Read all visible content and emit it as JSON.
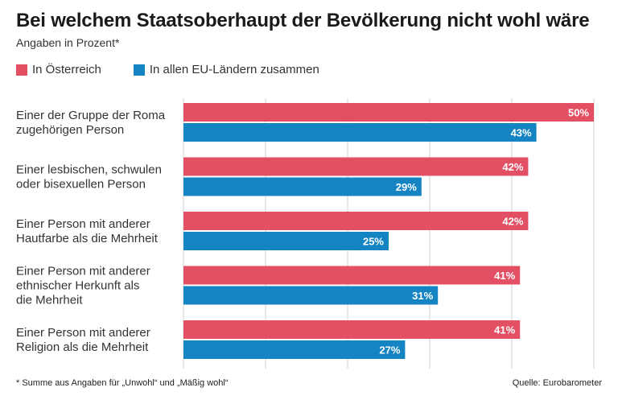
{
  "chart_data": {
    "type": "bar",
    "orientation": "horizontal",
    "title": "Bei welchem Staatsoberhaupt der Bevölkerung nicht wohl wäre",
    "subtitle": "Angaben in Prozent*",
    "categories": [
      [
        "Einer der Gruppe der Roma",
        "zugehörigen Person"
      ],
      [
        "Einer lesbischen, schwulen",
        "oder bisexuellen Person"
      ],
      [
        "Einer Person mit anderer",
        "Hautfarbe als die Mehrheit"
      ],
      [
        "Einer Person mit anderer",
        "ethnischer Herkunft als",
        "die Mehrheit"
      ],
      [
        "Einer Person mit anderer",
        "Religion als die Mehrheit"
      ]
    ],
    "series": [
      {
        "name": "In Österreich",
        "color": "#e35064",
        "values": [
          50,
          42,
          42,
          41,
          41
        ]
      },
      {
        "name": "In allen EU-Ländern zusammen",
        "color": "#1485c2",
        "values": [
          43,
          29,
          25,
          31,
          27
        ]
      }
    ],
    "value_suffix": "%",
    "xlim": [
      0,
      50
    ],
    "grid_step": 10,
    "grid": true
  },
  "footnote": "* Summe aus Angaben für „Unwohl“ und „Mäßig wohl“",
  "source": "Quelle: Eurobarometer"
}
